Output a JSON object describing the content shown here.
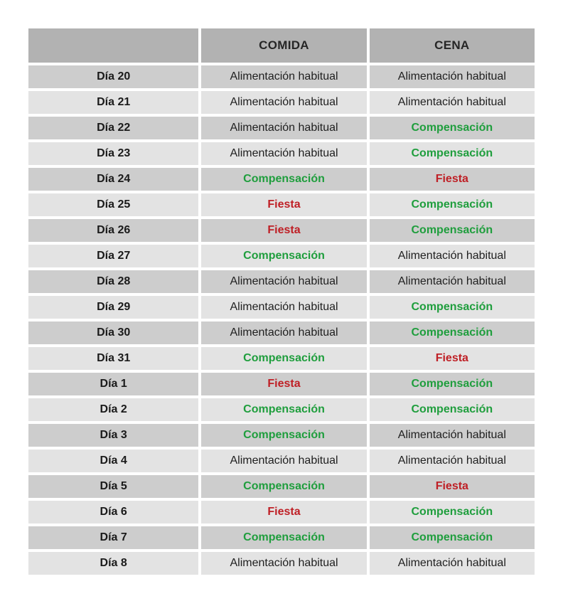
{
  "colors": {
    "header_bg": "#b2b2b2",
    "row_dark_bg": "#cdcdcd",
    "row_light_bg": "#e3e3e3",
    "habitual_text": "#1f1f1f",
    "compensacion_text": "#1f9e3d",
    "fiesta_text": "#bf2026"
  },
  "table": {
    "headers": {
      "day": "",
      "comida": "COMIDA",
      "cena": "CENA"
    },
    "rows": [
      {
        "day": "Día 20",
        "comida": {
          "label": "Alimentación habitual",
          "type": "habitual"
        },
        "cena": {
          "label": "Alimentación habitual",
          "type": "habitual"
        }
      },
      {
        "day": "Día 21",
        "comida": {
          "label": "Alimentación habitual",
          "type": "habitual"
        },
        "cena": {
          "label": "Alimentación habitual",
          "type": "habitual"
        }
      },
      {
        "day": "Día 22",
        "comida": {
          "label": "Alimentación habitual",
          "type": "habitual"
        },
        "cena": {
          "label": "Compensación",
          "type": "compensacion"
        }
      },
      {
        "day": "Día 23",
        "comida": {
          "label": "Alimentación habitual",
          "type": "habitual"
        },
        "cena": {
          "label": "Compensación",
          "type": "compensacion"
        }
      },
      {
        "day": "Día 24",
        "comida": {
          "label": "Compensación",
          "type": "compensacion"
        },
        "cena": {
          "label": "Fiesta",
          "type": "fiesta"
        }
      },
      {
        "day": "Día 25",
        "comida": {
          "label": "Fiesta",
          "type": "fiesta"
        },
        "cena": {
          "label": "Compensación",
          "type": "compensacion"
        }
      },
      {
        "day": "Día 26",
        "comida": {
          "label": "Fiesta",
          "type": "fiesta"
        },
        "cena": {
          "label": "Compensación",
          "type": "compensacion"
        }
      },
      {
        "day": "Día 27",
        "comida": {
          "label": "Compensación",
          "type": "compensacion"
        },
        "cena": {
          "label": "Alimentación habitual",
          "type": "habitual"
        }
      },
      {
        "day": "Día 28",
        "comida": {
          "label": "Alimentación habitual",
          "type": "habitual"
        },
        "cena": {
          "label": "Alimentación habitual",
          "type": "habitual"
        }
      },
      {
        "day": "Día 29",
        "comida": {
          "label": "Alimentación habitual",
          "type": "habitual"
        },
        "cena": {
          "label": "Compensación",
          "type": "compensacion"
        }
      },
      {
        "day": "Día 30",
        "comida": {
          "label": "Alimentación habitual",
          "type": "habitual"
        },
        "cena": {
          "label": "Compensación",
          "type": "compensacion"
        }
      },
      {
        "day": "Día 31",
        "comida": {
          "label": "Compensación",
          "type": "compensacion"
        },
        "cena": {
          "label": "Fiesta",
          "type": "fiesta"
        }
      },
      {
        "day": "Día 1",
        "comida": {
          "label": "Fiesta",
          "type": "fiesta"
        },
        "cena": {
          "label": "Compensación",
          "type": "compensacion"
        }
      },
      {
        "day": "Día 2",
        "comida": {
          "label": "Compensación",
          "type": "compensacion"
        },
        "cena": {
          "label": "Compensación",
          "type": "compensacion"
        }
      },
      {
        "day": "Día 3",
        "comida": {
          "label": "Compensación",
          "type": "compensacion"
        },
        "cena": {
          "label": "Alimentación habitual",
          "type": "habitual"
        }
      },
      {
        "day": "Día 4",
        "comida": {
          "label": "Alimentación habitual",
          "type": "habitual"
        },
        "cena": {
          "label": "Alimentación habitual",
          "type": "habitual"
        }
      },
      {
        "day": "Día 5",
        "comida": {
          "label": "Compensación",
          "type": "compensacion"
        },
        "cena": {
          "label": "Fiesta",
          "type": "fiesta"
        }
      },
      {
        "day": "Día 6",
        "comida": {
          "label": "Fiesta",
          "type": "fiesta"
        },
        "cena": {
          "label": "Compensación",
          "type": "compensacion"
        }
      },
      {
        "day": "Día 7",
        "comida": {
          "label": "Compensación",
          "type": "compensacion"
        },
        "cena": {
          "label": "Compensación",
          "type": "compensacion"
        }
      },
      {
        "day": "Día 8",
        "comida": {
          "label": "Alimentación habitual",
          "type": "habitual"
        },
        "cena": {
          "label": "Alimentación habitual",
          "type": "habitual"
        }
      }
    ]
  }
}
